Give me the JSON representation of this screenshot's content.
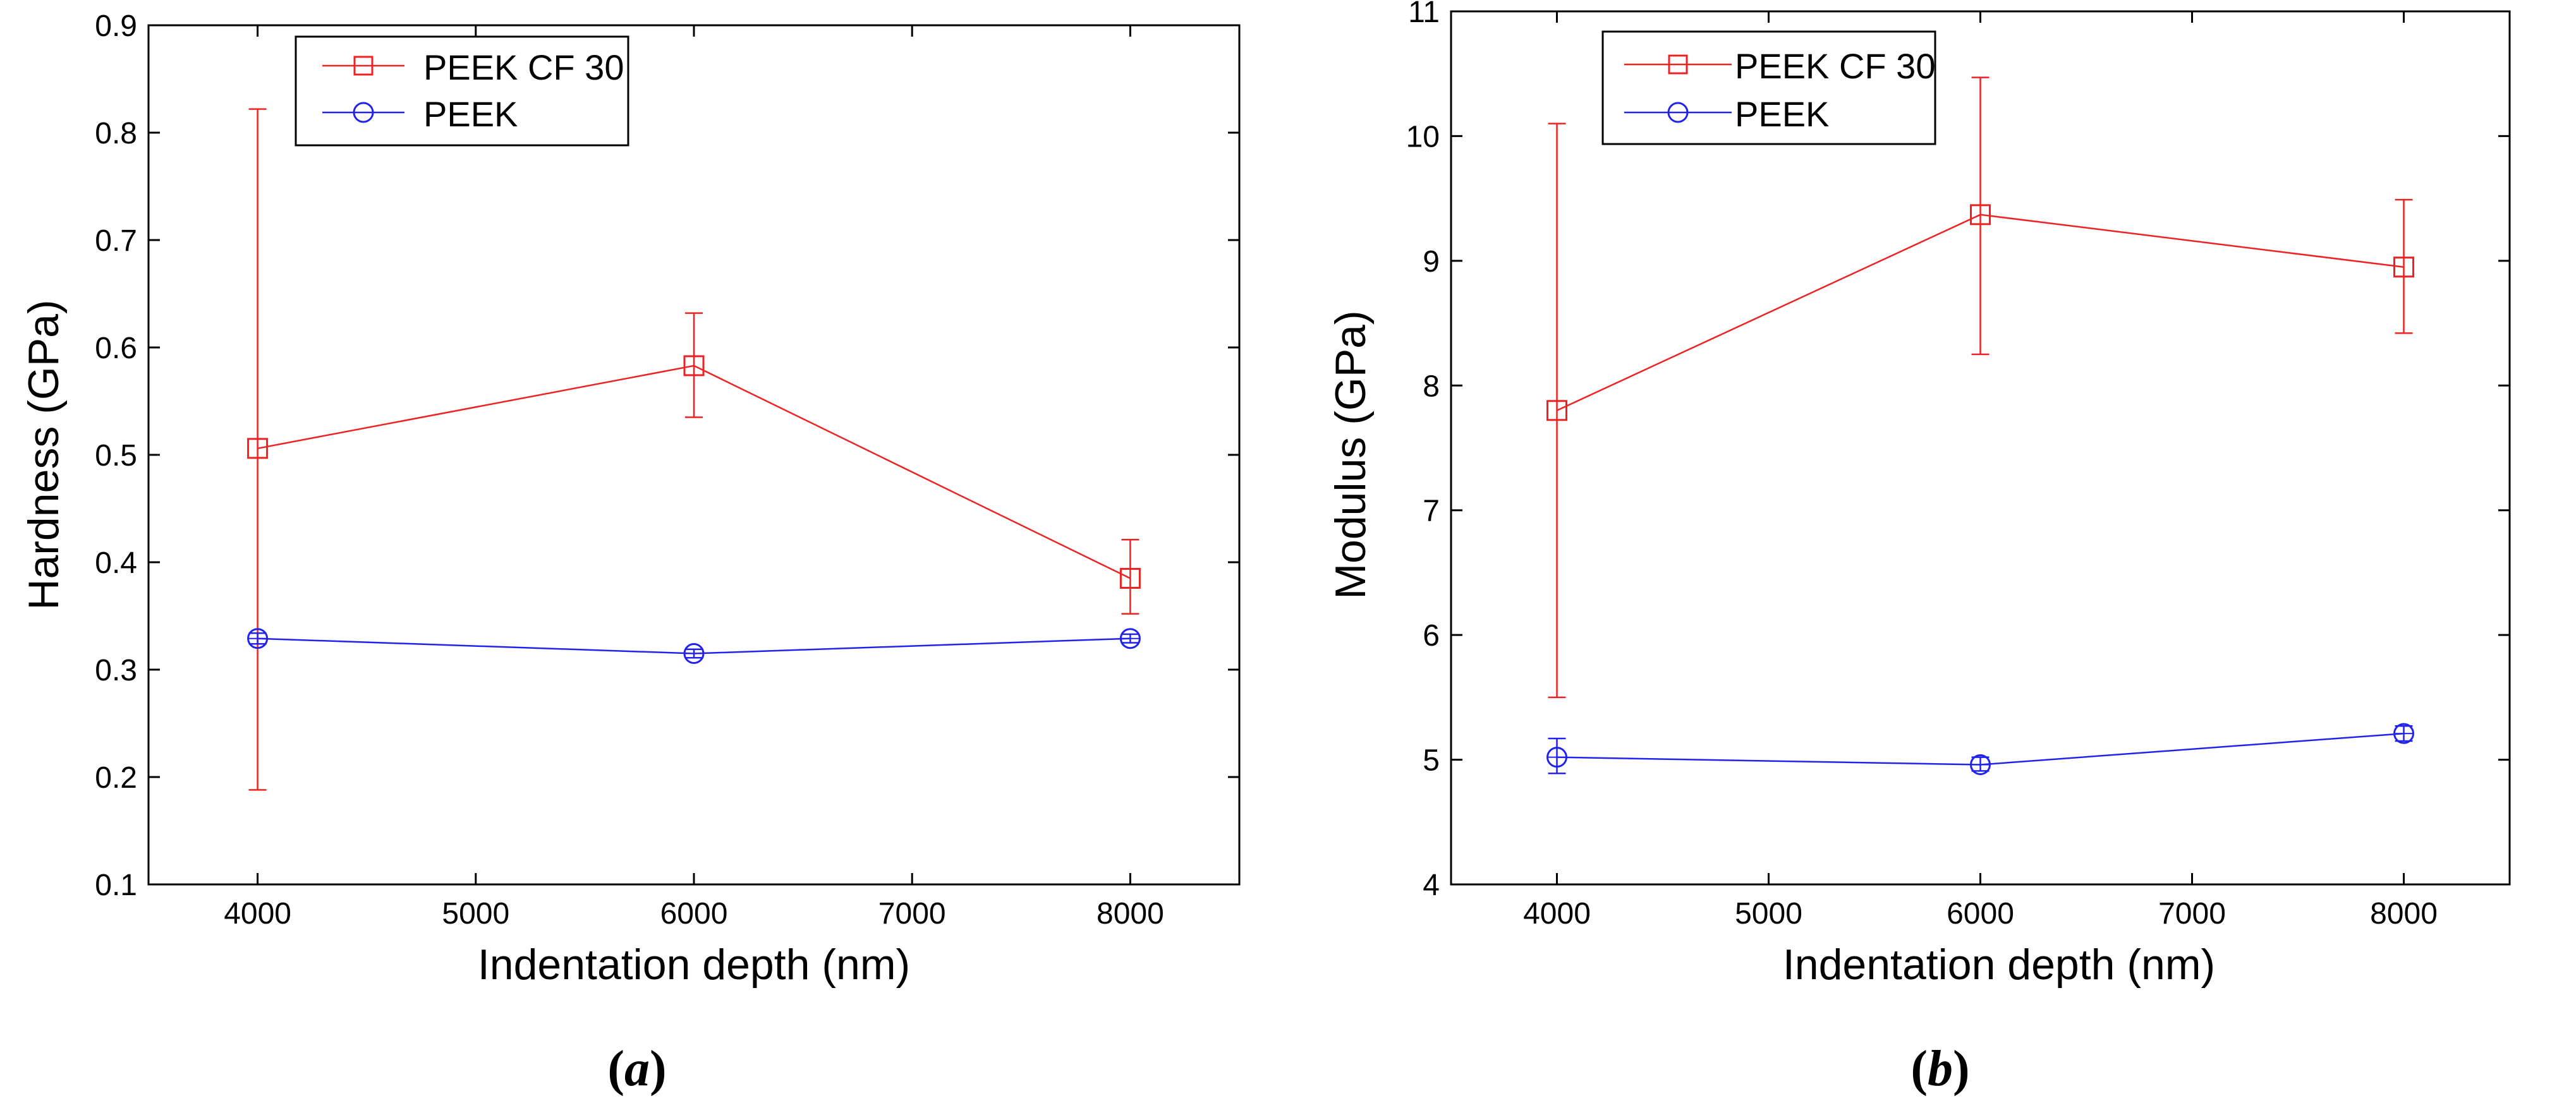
{
  "chart_data": [
    {
      "type": "line",
      "panel_label": "(a)",
      "panel_letter": "a",
      "xlabel": "Indentation depth (nm)",
      "ylabel": "Hardness (GPa)",
      "xlim": [
        3500,
        8500
      ],
      "ylim": [
        0.1,
        0.9
      ],
      "xticks": [
        4000,
        5000,
        6000,
        7000,
        8000
      ],
      "xtick_labels": [
        "4000",
        "5000",
        "6000",
        "7000",
        "8000"
      ],
      "yticks": [
        0.1,
        0.2,
        0.3,
        0.4,
        0.5,
        0.6,
        0.7,
        0.8,
        0.9
      ],
      "ytick_labels": [
        "0.1",
        "0.2",
        "0.3",
        "0.4",
        "0.5",
        "0.6",
        "0.7",
        "0.8",
        "0.9"
      ],
      "grid": false,
      "legend_position": "top-left",
      "series": [
        {
          "name": "PEEK CF 30",
          "color": "#ee2222",
          "marker": "square",
          "x": [
            4000,
            6000,
            8000
          ],
          "values": [
            0.506,
            0.583,
            0.385
          ],
          "err_low": [
            0.188,
            0.535,
            0.352
          ],
          "err_high": [
            0.822,
            0.632,
            0.421
          ]
        },
        {
          "name": "PEEK",
          "color": "#2222ee",
          "marker": "circle",
          "x": [
            4000,
            6000,
            8000
          ],
          "values": [
            0.329,
            0.315,
            0.329
          ],
          "err_low": [
            0.324,
            0.311,
            0.325
          ],
          "err_high": [
            0.334,
            0.319,
            0.333
          ]
        }
      ]
    },
    {
      "type": "line",
      "panel_label": "(b)",
      "panel_letter": "b",
      "xlabel": "Indentation depth (nm)",
      "ylabel": "Modulus (GPa)",
      "xlim": [
        3500,
        8500
      ],
      "ylim": [
        4,
        11
      ],
      "xticks": [
        4000,
        5000,
        6000,
        7000,
        8000
      ],
      "xtick_labels": [
        "4000",
        "5000",
        "6000",
        "7000",
        "8000"
      ],
      "yticks": [
        4,
        5,
        6,
        7,
        8,
        9,
        10,
        11
      ],
      "ytick_labels": [
        "4",
        "5",
        "6",
        "7",
        "8",
        "9",
        "10",
        "11"
      ],
      "grid": false,
      "legend_position": "top-left",
      "series": [
        {
          "name": "PEEK CF 30",
          "color": "#ee2222",
          "marker": "square",
          "x": [
            4000,
            6000,
            8000
          ],
          "values": [
            7.8,
            9.37,
            8.95
          ],
          "err_low": [
            5.5,
            8.25,
            8.42
          ],
          "err_high": [
            10.1,
            10.47,
            9.49
          ]
        },
        {
          "name": "PEEK",
          "color": "#2222ee",
          "marker": "circle",
          "x": [
            4000,
            6000,
            8000
          ],
          "values": [
            5.02,
            4.96,
            5.21
          ],
          "err_low": [
            4.89,
            4.91,
            5.15
          ],
          "err_high": [
            5.17,
            5.02,
            5.27
          ]
        }
      ]
    }
  ]
}
